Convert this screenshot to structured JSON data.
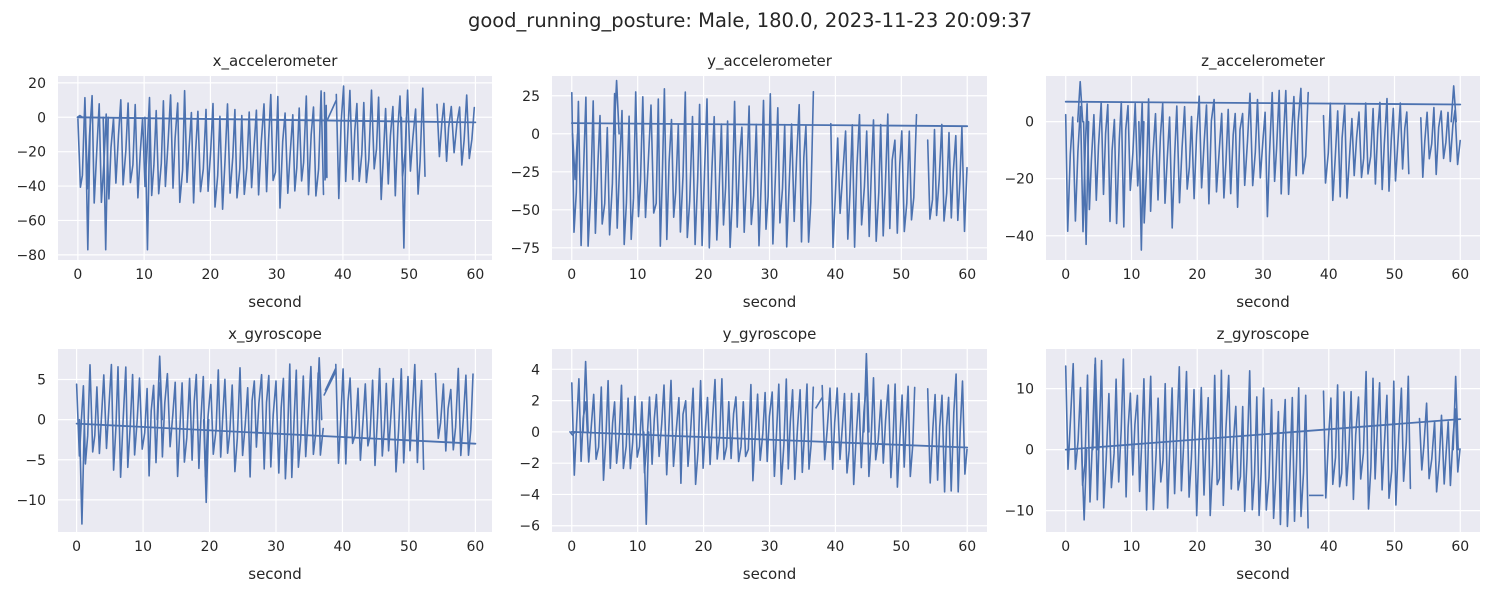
{
  "figure_title": "good_running_posture: Male, 180.0, 2023-11-23 20:09:37",
  "colors": {
    "background": "#eaeaf2",
    "grid": "#ffffff",
    "line": "#4c72b0",
    "text": "#262626"
  },
  "chart_data": [
    {
      "type": "line",
      "title": "x_accelerometer",
      "xlabel": "second",
      "xlim": [
        -3,
        62.5
      ],
      "ylim": [
        -83,
        24
      ],
      "xticks": [
        0,
        10,
        20,
        30,
        40,
        50,
        60
      ],
      "yticks": [
        -80,
        -60,
        -40,
        -20,
        0,
        20
      ],
      "grid": true,
      "legend": "none",
      "series": [
        {
          "color": "#4c72b0",
          "segments": [
            {
              "t0": 0,
              "t1": 37.2,
              "dt": 0.36,
              "center": -22,
              "top": 16,
              "bottom": -55,
              "drift": 1.2,
              "seed": 11
            },
            {
              "t0": 37.2,
              "t1": 37.6,
              "dt": 0.1,
              "center": -25,
              "top": 17,
              "bottom": -40,
              "drift": 0,
              "seed": 12
            },
            {
              "t0": 39,
              "t1": 52.5,
              "dt": 0.36,
              "center": -15,
              "top": 18,
              "bottom": -48,
              "drift": -0.6,
              "seed": 13
            },
            {
              "t0": 54.2,
              "t1": 60,
              "dt": 0.36,
              "center": -8,
              "top": 13,
              "bottom": -30,
              "drift": 0,
              "seed": 14
            }
          ],
          "connectors": [
            [
              37.6,
              -2
            ],
            [
              39,
              10
            ]
          ],
          "trend": [
            [
              0,
              0
            ],
            [
              60,
              -3
            ]
          ],
          "spikes": [
            [
              1.5,
              -77
            ],
            [
              4.2,
              -77
            ],
            [
              49.2,
              -76
            ],
            [
              0.3,
              1
            ],
            [
              10.5,
              -77
            ]
          ]
        }
      ]
    },
    {
      "type": "line",
      "title": "y_accelerometer",
      "xlabel": "second",
      "xlim": [
        -3,
        63
      ],
      "ylim": [
        -83,
        38
      ],
      "xticks": [
        0,
        10,
        20,
        30,
        40,
        50,
        60
      ],
      "yticks": [
        -75,
        -50,
        -25,
        0,
        25
      ],
      "grid": true,
      "legend": "none",
      "series": [
        {
          "color": "#4c72b0",
          "segments": [
            {
              "t0": 0,
              "t1": 37,
              "dt": 0.36,
              "center": -30,
              "top": 30,
              "bottom": -77,
              "drift": 0,
              "seed": 21
            },
            {
              "t0": 39.3,
              "t1": 52.5,
              "dt": 0.36,
              "center": -30,
              "top": 13,
              "bottom": -76,
              "drift": 0,
              "seed": 22
            },
            {
              "t0": 54,
              "t1": 60,
              "dt": 0.36,
              "center": -30,
              "top": 8,
              "bottom": -70,
              "drift": 0,
              "seed": 23
            }
          ],
          "connectors": [],
          "trend": [
            [
              0,
              7
            ],
            [
              60,
              5
            ]
          ],
          "spikes": [
            [
              6.8,
              35
            ],
            [
              0.5,
              -30
            ]
          ]
        }
      ]
    },
    {
      "type": "line",
      "title": "z_accelerometer",
      "xlabel": "second",
      "xlim": [
        -3,
        63
      ],
      "ylim": [
        -48.5,
        16
      ],
      "xticks": [
        0,
        10,
        20,
        30,
        40,
        50,
        60
      ],
      "yticks": [
        -40,
        -20,
        0
      ],
      "grid": true,
      "legend": "none",
      "series": [
        {
          "color": "#4c72b0",
          "segments": [
            {
              "t0": 0,
              "t1": 37,
              "dt": 0.36,
              "center": -8,
              "top": 9,
              "bottom": -37,
              "drift": 3,
              "seed": 31
            },
            {
              "t0": 39.2,
              "t1": 52.5,
              "dt": 0.36,
              "center": -8,
              "top": 8,
              "bottom": -28,
              "drift": 1,
              "seed": 32
            },
            {
              "t0": 54,
              "t1": 60,
              "dt": 0.36,
              "center": -4,
              "top": 5,
              "bottom": -22,
              "drift": 0,
              "seed": 33
            }
          ],
          "connectors": [],
          "trend": [
            [
              0,
              7
            ],
            [
              60,
              6
            ]
          ],
          "spikes": [
            [
              2.2,
              14
            ],
            [
              11.5,
              -45
            ],
            [
              3.1,
              -43
            ],
            [
              59,
              12.5
            ]
          ]
        }
      ]
    },
    {
      "type": "line",
      "title": "x_gyroscope",
      "xlabel": "second",
      "xlim": [
        -2.8,
        62.5
      ],
      "ylim": [
        -14,
        8.8
      ],
      "xticks": [
        0,
        10,
        20,
        30,
        40,
        50,
        60
      ],
      "yticks": [
        -10,
        -5,
        0,
        5
      ],
      "grid": true,
      "legend": "none",
      "series": [
        {
          "color": "#4c72b0",
          "segments": [
            {
              "t0": 0,
              "t1": 37.2,
              "dt": 0.36,
              "center": 0,
              "top": 7,
              "bottom": -7.5,
              "drift": 0,
              "seed": 41
            },
            {
              "t0": 39,
              "t1": 52.5,
              "dt": 0.36,
              "center": 0,
              "top": 7,
              "bottom": -6.5,
              "drift": 0,
              "seed": 42
            },
            {
              "t0": 54,
              "t1": 60,
              "dt": 0.36,
              "center": 0,
              "top": 6.5,
              "bottom": -4.5,
              "drift": 0,
              "seed": 43
            }
          ],
          "connectors": [
            [
              37.2,
              3
            ],
            [
              39,
              6
            ],
            [
              37.4,
              3.6
            ],
            [
              39,
              6.4
            ]
          ],
          "trend": [
            [
              0,
              -0.5
            ],
            [
              60,
              -3
            ]
          ],
          "spikes": [
            [
              0.8,
              -13
            ],
            [
              19.5,
              -10.3
            ],
            [
              12.5,
              7.9
            ],
            [
              36.5,
              7.7
            ]
          ]
        }
      ]
    },
    {
      "type": "line",
      "title": "y_gyroscope",
      "xlabel": "second",
      "xlim": [
        -3,
        63
      ],
      "ylim": [
        -6.4,
        5.3
      ],
      "xticks": [
        0,
        10,
        20,
        30,
        40,
        50,
        60
      ],
      "yticks": [
        -6,
        -4,
        -2,
        0,
        2,
        4
      ],
      "grid": true,
      "legend": "none",
      "series": [
        {
          "color": "#4c72b0",
          "segments": [
            {
              "t0": 0,
              "t1": 37,
              "dt": 0.36,
              "center": 0,
              "top": 3.4,
              "bottom": -3.4,
              "drift": 0,
              "seed": 51
            },
            {
              "t0": 38,
              "t1": 52.3,
              "dt": 0.36,
              "center": 0,
              "top": 3.6,
              "bottom": -3.6,
              "drift": 0,
              "seed": 52
            },
            {
              "t0": 54,
              "t1": 60,
              "dt": 0.36,
              "center": 0,
              "top": 3.8,
              "bottom": -4,
              "drift": 0,
              "seed": 53
            }
          ],
          "connectors": [
            [
              37,
              1.5
            ],
            [
              38,
              2.2
            ]
          ],
          "trend": [
            [
              0,
              0
            ],
            [
              60,
              -1
            ]
          ],
          "spikes": [
            [
              2.1,
              4.5
            ],
            [
              11.3,
              -5.9
            ],
            [
              44.7,
              5
            ],
            [
              0.1,
              -0.2
            ]
          ]
        }
      ]
    },
    {
      "type": "line",
      "title": "z_gyroscope",
      "xlabel": "second",
      "xlim": [
        -3,
        63
      ],
      "ylim": [
        -13.5,
        16.5
      ],
      "xticks": [
        0,
        10,
        20,
        30,
        40,
        50,
        60
      ],
      "yticks": [
        -10,
        0,
        10
      ],
      "grid": true,
      "legend": "none",
      "series": [
        {
          "color": "#4c72b0",
          "segments": [
            {
              "t0": 0,
              "t1": 37,
              "dt": 0.36,
              "center": 0,
              "top": 14,
              "bottom": -11,
              "drift": -2,
              "seed": 61
            },
            {
              "t0": 39.2,
              "t1": 52.5,
              "dt": 0.36,
              "center": 0,
              "top": 13,
              "bottom": -10,
              "drift": 0,
              "seed": 62
            },
            {
              "t0": 53.8,
              "t1": 60,
              "dt": 0.36,
              "center": 0,
              "top": 8,
              "bottom": -7,
              "drift": 0,
              "seed": 63
            }
          ],
          "connectors": [
            [
              37,
              -7.5
            ],
            [
              39.2,
              -7.5
            ]
          ],
          "trend": [
            [
              0,
              0
            ],
            [
              60,
              5
            ]
          ],
          "spikes": [
            [
              4.5,
              15
            ],
            [
              59.3,
              12
            ],
            [
              2.8,
              -11.5
            ]
          ]
        }
      ]
    }
  ]
}
